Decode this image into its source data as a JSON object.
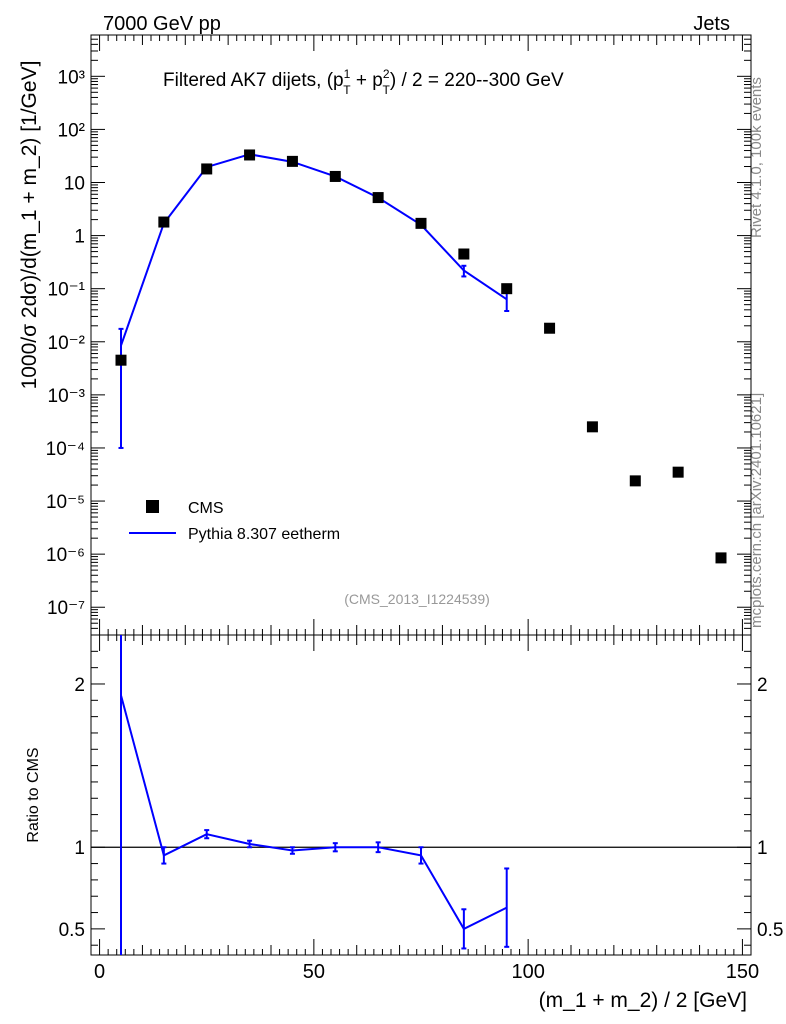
{
  "header": {
    "left": "7000 GeV pp",
    "right": "Jets"
  },
  "side_labels": {
    "rivet": "Rivet 4.1.0,  100k events",
    "mcplots": "mcplots.cern.ch [arXiv:2401.10621]"
  },
  "colors": {
    "data": "#000000",
    "mc": "#0000ff",
    "reference_line": "#000000"
  },
  "chart_data": [
    {
      "type": "scatter",
      "title": "Filtered AK7 dijets, (p",
      "title_sup1": "1",
      "title_sub1": "T",
      "title_plus": " + p",
      "title_sup2": "2",
      "title_sub2": "T",
      "title_tail": ") / 2 = 220--300 GeV",
      "ylabel": "1000/σ  2dσ)/d(m_1 + m_2) [1/GeV]",
      "xlabel": "",
      "analysis_label": "(CMS_2013_I1224539)",
      "xlim": [
        -2,
        152
      ],
      "ylim": [
        3e-08,
        6000
      ],
      "yscale": "log",
      "legend_position": "bottom-left",
      "y_tick_labels": [
        "10⁻⁷",
        "10⁻⁶",
        "10⁻⁵",
        "10⁻⁴",
        "10⁻³",
        "10⁻²",
        "10⁻¹",
        "1",
        "10",
        "10²",
        "10³"
      ],
      "series": [
        {
          "name": "CMS",
          "style": "markers",
          "x": [
            5,
            15,
            25,
            35,
            45,
            55,
            65,
            75,
            85,
            95,
            105,
            115,
            125,
            135,
            145
          ],
          "y": [
            0.0045,
            1.8,
            18,
            33,
            25,
            13,
            5.2,
            1.7,
            0.45,
            0.1,
            0.018,
            0.00025,
            2.4e-05,
            3.5e-05,
            8.5e-07
          ]
        },
        {
          "name": "Pythia 8.307 eetherm",
          "style": "line",
          "x": [
            5,
            15,
            25,
            35,
            45,
            55,
            65,
            75,
            85,
            95
          ],
          "y": [
            0.0085,
            1.7,
            19.5,
            34,
            24.5,
            13,
            5.2,
            1.6,
            0.22,
            0.063
          ],
          "err_low": [
            0.0084,
            0.1,
            0.6,
            0.6,
            0.5,
            0.3,
            0.2,
            0.12,
            0.05,
            0.025
          ],
          "err_high": [
            0.009,
            0.1,
            0.6,
            0.6,
            0.5,
            0.3,
            0.2,
            0.12,
            0.05,
            0.025
          ]
        }
      ]
    },
    {
      "type": "line",
      "ylabel": "Ratio to CMS",
      "xlabel": "(m_1 + m_2) / 2 [GeV]",
      "xlim": [
        -2,
        152
      ],
      "ylim": [
        0.34,
        2.3
      ],
      "reference_value": 1,
      "x_ticks": [
        0,
        50,
        100,
        150
      ],
      "y_ticks": [
        0.5,
        1,
        2
      ],
      "series": [
        {
          "name": "Pythia 8.307 eetherm",
          "x": [
            5,
            15,
            25,
            35,
            45,
            55,
            65,
            75,
            85,
            95
          ],
          "y": [
            1.93,
            0.95,
            1.08,
            1.02,
            0.98,
            1.0,
            1.0,
            0.95,
            0.5,
            0.63
          ],
          "err": [
            2.0,
            0.05,
            0.025,
            0.02,
            0.02,
            0.025,
            0.03,
            0.05,
            0.12,
            0.24
          ]
        }
      ]
    }
  ]
}
